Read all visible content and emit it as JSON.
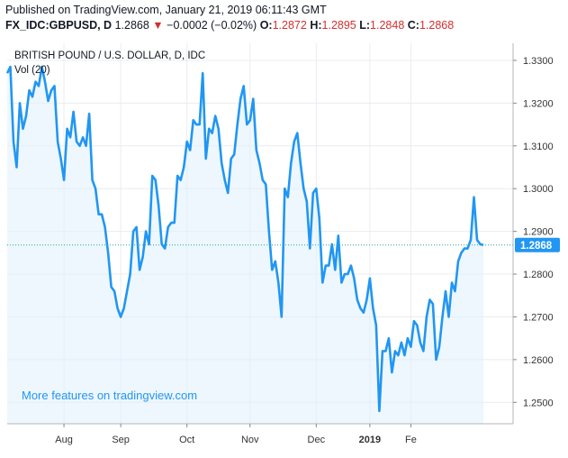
{
  "header": {
    "published": "Published on TradingView.com, January 21, 2019 06:11:43 GMT",
    "symbol": "FX_IDC:GBPUSD, D",
    "last": "1.2868",
    "change": "−0.0002 (−0.02%)",
    "open_label": "O:",
    "open": "1.2872",
    "high_label": "H:",
    "high": "1.2895",
    "low_label": "L:",
    "low": "1.2848",
    "close_label": "C:",
    "close": "1.2868"
  },
  "colors": {
    "line": "#2196f3",
    "area": "#e3f2fd",
    "price_tag": "#2196f3",
    "down": "#d32f2f",
    "grid": "#e9ecef"
  },
  "chart_data": {
    "type": "area",
    "title": "BRITISH POUND / U.S. DOLLAR, D, IDC",
    "volume_label": "Vol (20)",
    "watermark": "More features on tradingview.com",
    "y_ticks": [
      "1.3300",
      "1.3200",
      "1.3100",
      "1.3000",
      "1.2900",
      "1.2800",
      "1.2700",
      "1.2600",
      "1.2500"
    ],
    "y_tick_values": [
      1.33,
      1.32,
      1.31,
      1.3,
      1.29,
      1.28,
      1.27,
      1.26,
      1.25
    ],
    "x_ticks": [
      "Aug",
      "Sep",
      "Oct",
      "Nov",
      "Dec",
      "2019",
      "Fe"
    ],
    "x_tick_index": [
      18,
      36,
      57,
      77,
      98,
      115,
      128
    ],
    "ylim": [
      1.245,
      1.334
    ],
    "current_price": 1.2868,
    "current_price_label": "1.2868",
    "values": [
      1.327,
      1.3285,
      1.311,
      1.305,
      1.32,
      1.314,
      1.317,
      1.323,
      1.3215,
      1.325,
      1.324,
      1.3285,
      1.325,
      1.3205,
      1.323,
      1.324,
      1.311,
      1.307,
      1.302,
      1.314,
      1.312,
      1.318,
      1.311,
      1.31,
      1.312,
      1.31,
      1.3175,
      1.302,
      1.3,
      1.294,
      1.294,
      1.291,
      1.285,
      1.277,
      1.276,
      1.272,
      1.27,
      1.272,
      1.276,
      1.28,
      1.29,
      1.291,
      1.281,
      1.284,
      1.29,
      1.287,
      1.303,
      1.302,
      1.296,
      1.287,
      1.286,
      1.291,
      1.292,
      1.292,
      1.303,
      1.302,
      1.305,
      1.311,
      1.309,
      1.316,
      1.315,
      1.315,
      1.327,
      1.307,
      1.314,
      1.313,
      1.317,
      1.314,
      1.306,
      1.302,
      1.299,
      1.307,
      1.308,
      1.315,
      1.321,
      1.324,
      1.315,
      1.316,
      1.321,
      1.309,
      1.306,
      1.302,
      1.301,
      1.29,
      1.281,
      1.283,
      1.278,
      1.27,
      1.3,
      1.298,
      1.306,
      1.311,
      1.313,
      1.306,
      1.3,
      1.297,
      1.286,
      1.299,
      1.3,
      1.293,
      1.278,
      1.282,
      1.282,
      1.287,
      1.281,
      1.289,
      1.278,
      1.28,
      1.28,
      1.282,
      1.279,
      1.274,
      1.272,
      1.271,
      1.274,
      1.279,
      1.272,
      1.268,
      1.248,
      1.262,
      1.262,
      1.265,
      1.257,
      1.262,
      1.261,
      1.264,
      1.261,
      1.265,
      1.263,
      1.269,
      1.268,
      1.264,
      1.262,
      1.27,
      1.274,
      1.273,
      1.26,
      1.263,
      1.27,
      1.276,
      1.27,
      1.278,
      1.276,
      1.283,
      1.285,
      1.286,
      1.286,
      1.288,
      1.298,
      1.288,
      1.287,
      1.2868
    ]
  }
}
